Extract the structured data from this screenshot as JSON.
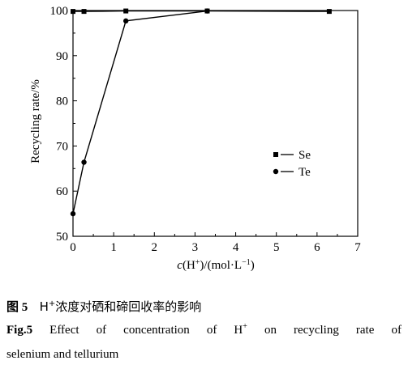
{
  "chart_data": {
    "type": "line",
    "title": "",
    "xlabel_parts": {
      "c": "c",
      "open": "(H",
      "sup1": "+",
      "mid": ")/(mol·L",
      "sup2": "−1",
      "close": ")"
    },
    "ylabel": "Recycling rate/%",
    "xlim": [
      0,
      7
    ],
    "ylim": [
      50,
      100
    ],
    "xticks": [
      "0",
      "1",
      "2",
      "3",
      "4",
      "5",
      "6",
      "7"
    ],
    "yticks": [
      "50",
      "60",
      "70",
      "80",
      "90",
      "100"
    ],
    "legend_position": "right-middle",
    "grid": false,
    "series": [
      {
        "name": "Se",
        "marker": "square",
        "x": [
          0,
          0.27,
          1.3,
          3.3,
          6.3
        ],
        "y": [
          99.8,
          99.8,
          99.9,
          99.9,
          99.8
        ]
      },
      {
        "name": "Te",
        "marker": "circle",
        "x": [
          0,
          0.27,
          1.3,
          3.3
        ],
        "y": [
          55,
          66.4,
          97.7,
          99.9
        ]
      }
    ]
  },
  "legend": {
    "se": "Se",
    "te": "Te"
  },
  "caption": {
    "cn_fig": "图 5",
    "cn_pre": "H",
    "cn_sup": "+",
    "cn_text": "浓度对硒和碲回收率的影响",
    "en_fig": "Fig.5",
    "en_words": [
      "Effect",
      "of",
      "concentration",
      "of",
      "H"
    ],
    "en_sup": "+",
    "en_words2": [
      "on",
      "recycling",
      "rate",
      "of"
    ],
    "en_line2": "selenium and tellurium"
  }
}
